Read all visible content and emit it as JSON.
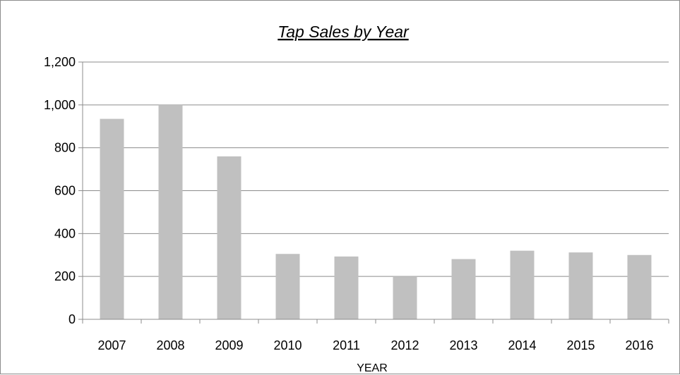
{
  "chart_data": {
    "type": "bar",
    "title": "Tap Sales by Year",
    "xlabel": "YEAR",
    "ylabel": "",
    "categories": [
      "2007",
      "2008",
      "2009",
      "2010",
      "2011",
      "2012",
      "2013",
      "2014",
      "2015",
      "2016"
    ],
    "values": [
      935,
      1000,
      760,
      305,
      293,
      200,
      281,
      320,
      312,
      300
    ],
    "ylim": [
      0,
      1200
    ],
    "yticks": [
      0,
      200,
      400,
      600,
      800,
      1000,
      1200
    ],
    "ytick_labels": [
      "0",
      "200",
      "400",
      "600",
      "800",
      "1,000",
      "1,200"
    ],
    "grid": true,
    "legend": "none",
    "bar_color": "#c0c0c0",
    "grid_color": "#8c8c8c"
  }
}
